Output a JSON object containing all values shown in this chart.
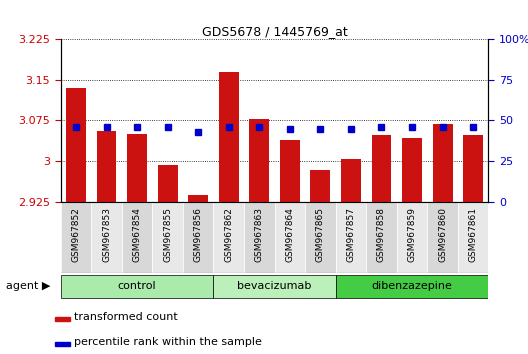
{
  "title": "GDS5678 / 1445769_at",
  "samples": [
    "GSM967852",
    "GSM967853",
    "GSM967854",
    "GSM967855",
    "GSM967856",
    "GSM967862",
    "GSM967863",
    "GSM967864",
    "GSM967865",
    "GSM967857",
    "GSM967858",
    "GSM967859",
    "GSM967860",
    "GSM967861"
  ],
  "transformed_count": [
    3.135,
    3.055,
    3.05,
    2.993,
    2.938,
    3.165,
    3.078,
    3.038,
    2.984,
    3.003,
    3.048,
    3.043,
    3.068,
    3.048
  ],
  "percentile_rank": [
    46,
    46,
    46,
    46,
    43,
    46,
    46,
    45,
    45,
    45,
    46,
    46,
    46,
    46
  ],
  "groups": [
    {
      "label": "control",
      "start": 0,
      "end": 5,
      "color": "#aaeaaa"
    },
    {
      "label": "bevacizumab",
      "start": 5,
      "end": 9,
      "color": "#bbf0bb"
    },
    {
      "label": "dibenzazepine",
      "start": 9,
      "end": 14,
      "color": "#44cc44"
    }
  ],
  "ymin": 2.925,
  "ymax": 3.225,
  "y2min": 0,
  "y2max": 100,
  "yticks": [
    2.925,
    3.0,
    3.075,
    3.15,
    3.225
  ],
  "ytick_labels": [
    "2.925",
    "3",
    "3.075",
    "3.15",
    "3.225"
  ],
  "y2ticks": [
    0,
    25,
    50,
    75,
    100
  ],
  "y2tick_labels": [
    "0",
    "25",
    "50",
    "75",
    "100%"
  ],
  "bar_color": "#cc1111",
  "dot_color": "#0000cc",
  "grid_color": "#000000",
  "tick_label_color_left": "#cc0000",
  "tick_label_color_right": "#0000cc",
  "agent_label": "agent",
  "legend_bar_label": "transformed count",
  "legend_dot_label": "percentile rank within the sample",
  "bar_width": 0.65
}
